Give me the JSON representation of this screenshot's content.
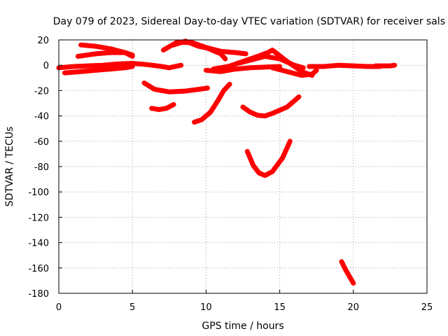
{
  "chart_data": {
    "type": "line",
    "title": "Day 079 of 2023, Sidereal Day-to-day VTEC variation (SDTVAR) for receiver sals",
    "xlabel": "GPS time / hours",
    "ylabel": "SDTVAR / TECUs",
    "xlim": [
      0,
      25
    ],
    "ylim": [
      -180,
      20
    ],
    "xticks": [
      0,
      5,
      10,
      15,
      20,
      25
    ],
    "yticks": [
      20,
      0,
      -20,
      -40,
      -60,
      -80,
      -100,
      -120,
      -140,
      -160,
      -180
    ],
    "grid": true,
    "color": "#ff0000",
    "series": [
      {
        "x": [
          0.0,
          1.0,
          2.0,
          3.0,
          4.0,
          5.0,
          6.0,
          7.0,
          7.5,
          8.3
        ],
        "y": [
          -2,
          -1,
          -0.5,
          0,
          1,
          1.5,
          0.5,
          -1,
          -2,
          0
        ]
      },
      {
        "x": [
          0.4,
          1.5,
          2.5,
          3.5,
          4.5,
          5.0
        ],
        "y": [
          -6,
          -5,
          -4,
          -3,
          -2,
          -1
        ]
      },
      {
        "x": [
          1.3,
          2.5,
          3.5,
          4.5,
          5.0
        ],
        "y": [
          7,
          9,
          10,
          10,
          8
        ]
      },
      {
        "x": [
          1.5,
          2.5,
          3.5,
          4.5,
          5.0
        ],
        "y": [
          16,
          15,
          13,
          10,
          7
        ]
      },
      {
        "x": [
          5.8,
          6.5,
          7.5,
          8.5,
          9.5,
          10.1
        ],
        "y": [
          -14,
          -19,
          -21,
          -20.5,
          -19,
          -18
        ]
      },
      {
        "x": [
          6.3,
          6.8,
          7.3,
          7.8
        ],
        "y": [
          -34,
          -35,
          -34,
          -31
        ]
      },
      {
        "x": [
          7.1,
          8.0,
          9.0,
          10.0,
          10.8
        ],
        "y": [
          12,
          18,
          18,
          14,
          10
        ]
      },
      {
        "x": [
          7.8,
          8.6,
          9.5,
          10.3,
          11.0,
          11.3
        ],
        "y": [
          16,
          19,
          15,
          13,
          9,
          5
        ]
      },
      {
        "x": [
          9.0,
          10.0,
          11.0,
          12.0,
          12.7
        ],
        "y": [
          18,
          14,
          11,
          10,
          9
        ]
      },
      {
        "x": [
          9.2,
          9.7,
          10.3,
          10.8,
          11.2,
          11.6
        ],
        "y": [
          -45,
          -43,
          -37,
          -28,
          -20,
          -15
        ]
      },
      {
        "x": [
          10.0,
          11.0,
          12.0,
          13.0,
          14.0,
          15.0
        ],
        "y": [
          -4,
          -5,
          -3,
          -2,
          -1.5,
          -1
        ]
      },
      {
        "x": [
          10.5,
          11.5,
          12.5,
          13.5,
          14.2,
          14.5,
          15.5,
          16.5,
          17.2
        ],
        "y": [
          -3,
          -1,
          3,
          7,
          10,
          12,
          3,
          -5,
          -8
        ]
      },
      {
        "x": [
          12.0,
          13.0,
          14.0,
          15.0,
          16.0,
          16.6
        ],
        "y": [
          1,
          4,
          7,
          5,
          0,
          -2
        ]
      },
      {
        "x": [
          12.5,
          13.0,
          13.5,
          14.0,
          14.5,
          15.5,
          16.3
        ],
        "y": [
          -33,
          -37,
          -39.5,
          -40,
          -38,
          -33,
          -25
        ]
      },
      {
        "x": [
          12.8,
          13.2,
          13.6,
          14.0,
          14.5,
          15.2,
          15.7
        ],
        "y": [
          -68,
          -79,
          -85,
          -87,
          -84,
          -73,
          -60
        ]
      },
      {
        "x": [
          14.5,
          15.5,
          16.5,
          17.2,
          17.5
        ],
        "y": [
          -2,
          -5,
          -8,
          -7,
          -4
        ]
      },
      {
        "x": [
          17.0,
          18.0,
          19.0,
          20.0,
          21.0,
          21.8
        ],
        "y": [
          -1,
          -1,
          0,
          -0.5,
          -1,
          -1
        ]
      },
      {
        "x": [
          21.5,
          22.5,
          22.8
        ],
        "y": [
          -0.5,
          -0.5,
          0
        ]
      },
      {
        "x": [
          19.2,
          19.5,
          19.8,
          20.0
        ],
        "y": [
          -155,
          -162,
          -168,
          -172
        ]
      }
    ]
  }
}
